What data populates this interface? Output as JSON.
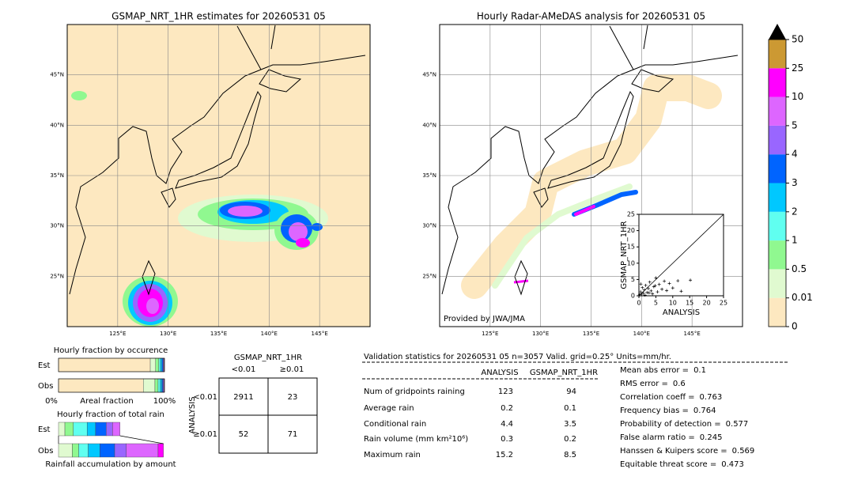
{
  "maps": [
    {
      "title": "GSMAP_NRT_1HR estimates for 20260531 05",
      "xlim": [
        120,
        150
      ],
      "ylim": [
        20,
        50
      ],
      "xticks": [
        {
          "value": 125,
          "label": "125°E"
        },
        {
          "value": 130,
          "label": "130°E"
        },
        {
          "value": 135,
          "label": "135°E"
        },
        {
          "value": 140,
          "label": "140°E"
        },
        {
          "value": 145,
          "label": "145°E"
        }
      ],
      "yticks": [
        {
          "value": 25,
          "label": "25°N"
        },
        {
          "value": 30,
          "label": "30°N"
        },
        {
          "value": 35,
          "label": "35°N"
        },
        {
          "value": 40,
          "label": "40°N"
        },
        {
          "value": 45,
          "label": "45°N"
        }
      ]
    },
    {
      "title": "Hourly Radar-AMeDAS analysis for 20260531 05",
      "credit": "Provided by JWA/JMA",
      "xlim": [
        120,
        150
      ],
      "ylim": [
        20,
        50
      ],
      "xticks": [
        {
          "value": 125,
          "label": "125°E"
        },
        {
          "value": 130,
          "label": "130°E"
        },
        {
          "value": 135,
          "label": "135°E"
        },
        {
          "value": 140,
          "label": "140°E"
        },
        {
          "value": 145,
          "label": "145°E"
        }
      ],
      "yticks": [
        {
          "value": 25,
          "label": "25°N"
        },
        {
          "value": 30,
          "label": "30°N"
        },
        {
          "value": 35,
          "label": "35°N"
        },
        {
          "value": 40,
          "label": "40°N"
        },
        {
          "value": 45,
          "label": "45°N"
        }
      ]
    }
  ],
  "colorbar": {
    "ticks": [
      0,
      0.01,
      0.5,
      1,
      2,
      3,
      4,
      5,
      10,
      25,
      50
    ],
    "colors": [
      "#fde8c0",
      "#e0fad0",
      "#90f890",
      "#60fff0",
      "#00c8ff",
      "#0064ff",
      "#9966ff",
      "#dd66ff",
      "#ff00ff",
      "#cc9933"
    ],
    "extend_color": "#000000"
  },
  "scatter": {
    "xlabel": "ANALYSIS",
    "ylabel": "GSMAP_NRT_1HR",
    "xlim": [
      0,
      25
    ],
    "ylim": [
      0,
      25
    ],
    "xticks": [
      0,
      5,
      10,
      15,
      20,
      25
    ],
    "yticks": [
      0,
      5,
      10,
      15,
      20,
      25
    ],
    "x": [
      0.2,
      0.5,
      0.8,
      1,
      1.3,
      1.6,
      2,
      2.4,
      2.8,
      3.2,
      3.6,
      4,
      4.4,
      5,
      5.5,
      6,
      6.8,
      7.5,
      8.2,
      9,
      10,
      11.5,
      12.5,
      15.2,
      0.6,
      1.8,
      3,
      4.8
    ],
    "y": [
      0.3,
      1.2,
      0.5,
      2.5,
      0.8,
      1.8,
      3.2,
      1,
      2.2,
      4.2,
      1.5,
      0.6,
      2.8,
      5.5,
      1.2,
      3.5,
      2,
      4.5,
      1.6,
      3.8,
      2.4,
      4.6,
      1.4,
      4.8,
      3.6,
      0.2,
      0.9,
      3.1
    ]
  },
  "occurrence": {
    "title": "Hourly fraction by occurence",
    "rows": [
      "Est",
      "Obs"
    ],
    "axis_labels": [
      "0%",
      "Areal fraction",
      "100%"
    ],
    "values": [
      [
        0.866,
        0.05,
        0.03,
        0.015,
        0.015,
        0.01,
        0.007,
        0.005,
        0.002,
        0
      ],
      [
        0.8,
        0.11,
        0.03,
        0.02,
        0.015,
        0.01,
        0.008,
        0.005,
        0.002,
        0
      ]
    ]
  },
  "total_rain": {
    "title": "Hourly fraction of total rain",
    "rows": [
      "Est",
      "Obs"
    ],
    "footer": "Rainfall accumulation by amount",
    "values": [
      [
        0,
        0.06,
        0.08,
        0.13,
        0.08,
        0.1,
        0.06,
        0.07,
        0,
        0
      ],
      [
        0,
        0.13,
        0.06,
        0.09,
        0.11,
        0.14,
        0.11,
        0.3,
        0.05,
        0
      ]
    ]
  },
  "contingency": {
    "title": "GSMAP_NRT_1HR",
    "columns": [
      "<0.01",
      "≥0.01"
    ],
    "row_title": "ANALYSIS",
    "rows": [
      "<0.01",
      "≥0.01"
    ],
    "cells": [
      [
        2911,
        23
      ],
      [
        52,
        71
      ]
    ]
  },
  "validation": {
    "header": "Validation statistics for 20260531 05  n=3057 Valid. grid=0.25° Units=mm/hr.",
    "columns": [
      "ANALYSIS",
      "GSMAP_NRT_1HR"
    ],
    "rows": [
      {
        "label": "Num of gridpoints raining",
        "analysis": 123,
        "gsmap": 94
      },
      {
        "label": "Average rain",
        "analysis": 0.2,
        "gsmap": 0.1
      },
      {
        "label": "Conditional rain",
        "analysis": 4.4,
        "gsmap": 3.5
      },
      {
        "label": "Rain volume (mm km²10⁶)",
        "analysis": 0.3,
        "gsmap": 0.2
      },
      {
        "label": "Maximum rain",
        "analysis": 15.2,
        "gsmap": 8.5
      }
    ],
    "scores": [
      {
        "label": "Mean abs error =",
        "value": 0.1
      },
      {
        "label": "RMS error =",
        "value": 0.6
      },
      {
        "label": "Correlation coeff =",
        "value": 0.763
      },
      {
        "label": "Frequency bias =",
        "value": 0.764
      },
      {
        "label": "Probability of detection =",
        "value": 0.577
      },
      {
        "label": "False alarm ratio =",
        "value": 0.245
      },
      {
        "label": "Hanssen & Kuipers score =",
        "value": 0.569
      },
      {
        "label": "Equitable threat score =",
        "value": 0.473
      }
    ]
  }
}
